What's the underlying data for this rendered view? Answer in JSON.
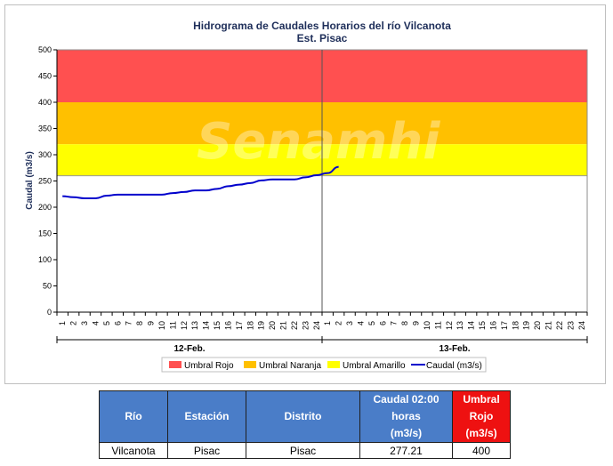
{
  "chart_data": {
    "type": "line",
    "title": "Hidrograma de Caudales Horarios del río Vilcanota",
    "subtitle": "Est. Pisac",
    "ylabel": "Caudal  (m3/s)",
    "ylim": [
      0,
      500
    ],
    "yticks": [
      "0",
      "50",
      "100",
      "150",
      "200",
      "250",
      "300",
      "350",
      "400",
      "450",
      "500"
    ],
    "xticks": [
      "1",
      "2",
      "3",
      "4",
      "5",
      "6",
      "7",
      "8",
      "9",
      "10",
      "11",
      "12",
      "13",
      "14",
      "15",
      "16",
      "17",
      "18",
      "19",
      "20",
      "21",
      "22",
      "23",
      "24",
      "1",
      "2",
      "3",
      "4",
      "5",
      "6",
      "7",
      "8",
      "9",
      "10",
      "11",
      "12",
      "13",
      "14",
      "15",
      "16",
      "17",
      "18",
      "19",
      "20",
      "21",
      "22",
      "23",
      "24"
    ],
    "day_labels": [
      "12-Feb.",
      "13-Feb."
    ],
    "bands": [
      {
        "name": "Umbral Rojo",
        "from": 400,
        "to": 500,
        "color": "#ff5050"
      },
      {
        "name": "Umbral Naranja",
        "from": 320,
        "to": 400,
        "color": "#ffc000"
      },
      {
        "name": "Umbral Amarillo",
        "from": 260,
        "to": 320,
        "color": "#ffff00"
      }
    ],
    "series": [
      {
        "name": "Caudal (m3/s)",
        "color": "#0000cc",
        "x": [
          1,
          2,
          3,
          4,
          5,
          6,
          7,
          8,
          9,
          10,
          11,
          12,
          13,
          14,
          15,
          16,
          17,
          18,
          19,
          20,
          21,
          22,
          23,
          24,
          25,
          26
        ],
        "values": [
          221,
          219,
          217,
          217,
          222,
          224,
          224,
          224,
          224,
          224,
          227,
          229,
          232,
          232,
          235,
          240,
          243,
          246,
          251,
          253,
          253,
          253,
          257,
          261,
          265,
          277
        ]
      }
    ],
    "legend": "bottom",
    "watermark": "Senamhi"
  },
  "table": {
    "headers": [
      {
        "text": "Río",
        "unit": ""
      },
      {
        "text": "Estación",
        "unit": ""
      },
      {
        "text": "Distrito",
        "unit": ""
      },
      {
        "text": "Caudal 02:00 horas",
        "unit": "(m3/s)"
      },
      {
        "text": "Umbral Rojo",
        "unit": "(m3/s)"
      }
    ],
    "row": [
      "Vilcanota",
      "Pisac",
      "Pisac",
      "277.21",
      "400"
    ],
    "header_color": "#4a7dc8",
    "alert_color": "#ee1111"
  }
}
